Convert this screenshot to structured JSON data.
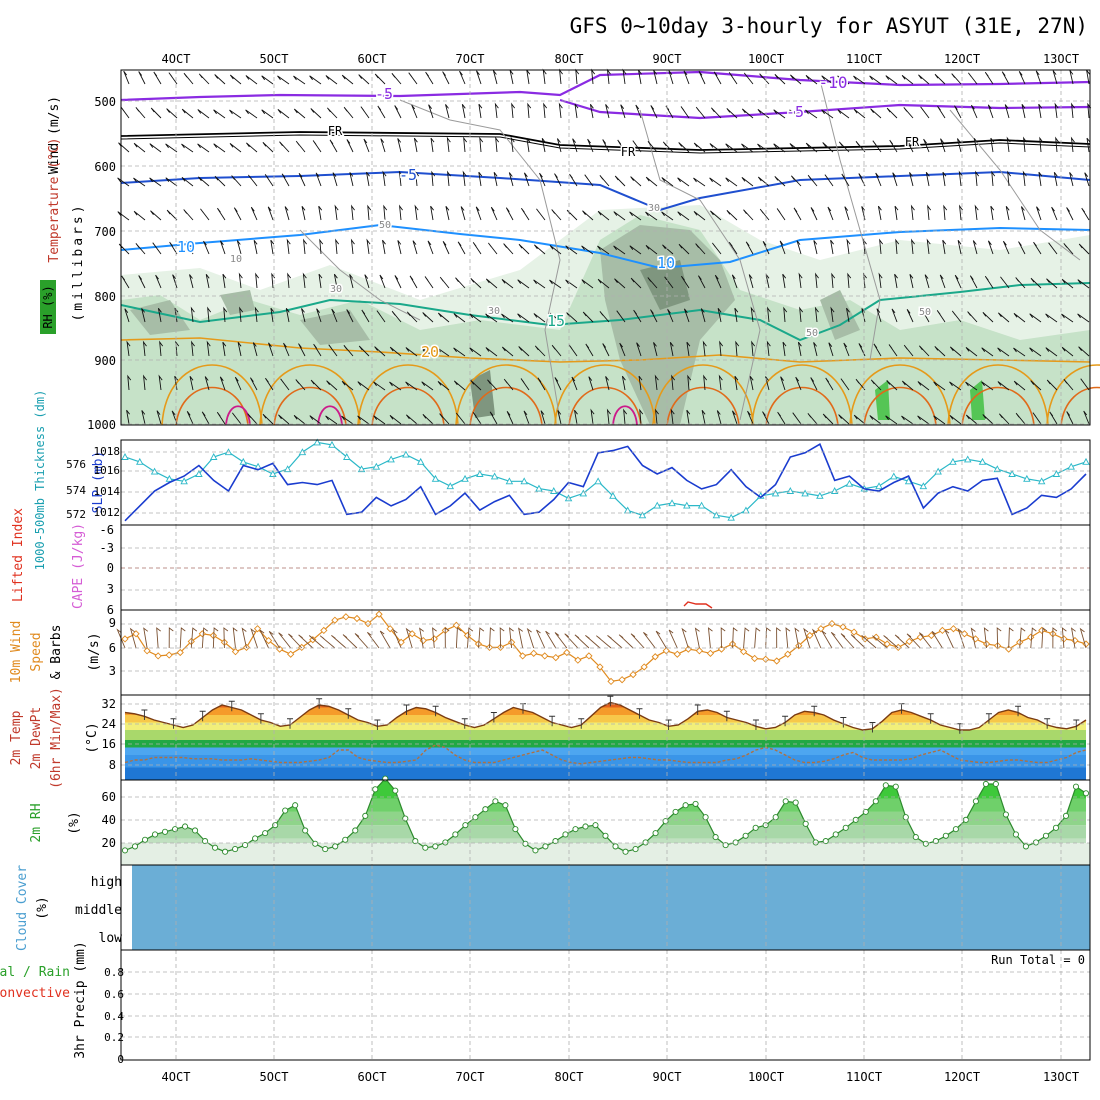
{
  "title": "GFS 0~10day 3-hourly for ASYUT (31E, 27N)",
  "colors": {
    "grid": "#b0b0b0",
    "sounding_rh1": "#e6f2e6",
    "sounding_rh2": "#c6e2c8",
    "sounding_rh3": "#a7bda7",
    "sounding_rh4": "#7f967f",
    "slp": "#1a3ccf",
    "thick": "#2bb8c8",
    "cape": "#d55cd5",
    "li": "#e0301e",
    "wind": "#e08a1e",
    "temp_line": "#7a3b12",
    "dew_line": "#b07040",
    "rh_line": "#2c8a2c",
    "rh_fill": "#5ccf4a",
    "cloud": "#6baed6",
    "purple": "#8a2be2",
    "black": "#000000",
    "blue": "#1f4fcf",
    "lightblue": "#1e90ff",
    "teal": "#1aa88a",
    "orange": "#e59a1a",
    "deeporange": "#e06a1a",
    "magenta": "#cc1a8a"
  },
  "x_ticks": [
    "4OCT",
    "5OCT",
    "6OCT",
    "7OCT",
    "8OCT",
    "9OCT",
    "10OCT",
    "11OCT",
    "12OCT",
    "13OCT"
  ],
  "panels": {
    "sounding": {
      "ylabel_wind": "Wind (m/s)",
      "ylabel_temp": "Temperature (°C)",
      "ylabel_rh": "RH (%)",
      "ylabel_mb": "(millibars)",
      "y_ticks": [
        "500",
        "600",
        "700",
        "800",
        "900",
        "1000"
      ],
      "contour_labels": [
        "-10",
        "-5",
        "-5",
        "FR",
        "FR",
        "FR",
        "-5",
        "10",
        "10",
        "15",
        "20",
        "30",
        "50",
        "30",
        "10",
        "50",
        "30",
        "50"
      ]
    },
    "slp": {
      "ylabel_thick": "1000-500mb Thickness (dm)",
      "ylabel_slp": "SLP (mb)",
      "left_ticks": [
        "576",
        "574",
        "572"
      ],
      "right_ticks": [
        "1018",
        "1016",
        "1014",
        "1012"
      ]
    },
    "cape": {
      "ylabel_li": "Lifted Index",
      "ylabel_cape": "CAPE (J/kg)",
      "ticks": [
        "-6",
        "-3",
        "0",
        "3",
        "6"
      ]
    },
    "wind10": {
      "ylabel_1": "10m Wind",
      "ylabel_2": "Speed",
      "ylabel_3": "(m/s)",
      "ylabel_4": "& Barbs",
      "ticks": [
        "9",
        "6",
        "3"
      ]
    },
    "temp2m": {
      "ylabel_1": "2m Temp",
      "ylabel_2": "2m DewPt",
      "ylabel_3": "(6hr Min/Max)",
      "ylabel_4": "(°C)",
      "ticks": [
        "32",
        "24",
        "16",
        "8"
      ]
    },
    "rh2m": {
      "ylabel_1": "2m RH",
      "ylabel_2": "(%)",
      "ticks": [
        "60",
        "40",
        "20"
      ]
    },
    "cloud": {
      "ylabel_1": "Cloud Cover",
      "ylabel_2": "(%)",
      "levels": [
        "high",
        "middle",
        "low"
      ]
    },
    "precip": {
      "ylabel_total": "Total / Rain",
      "ylabel_conv": "Convective",
      "ylabel_precip": "3hr Precip (mm)",
      "ticks": [
        "0.8",
        "0.6",
        "0.4",
        "0.2",
        "0"
      ],
      "run_total": "Run Total = 0"
    }
  },
  "chart_data": [
    {
      "type": "line",
      "title": "1000-500mb Thickness and SLP",
      "series": [
        {
          "name": "SLP (mb)",
          "axis": "right",
          "values": [
            1011.4,
            1012.8,
            1014.2,
            1015.0,
            1015.6,
            1016.6,
            1015.2,
            1014.2,
            1016.6,
            1016.2,
            1016.8,
            1014.8,
            1015.0,
            1014.8,
            1015.2,
            1012.0,
            1012.2,
            1013.6,
            1012.8,
            1013.4,
            1014.6,
            1012.0,
            1012.8,
            1014.0,
            1012.4,
            1013.2,
            1013.8,
            1012.0,
            1012.2,
            1013.4,
            1015.0,
            1014.6,
            1017.8,
            1018.0,
            1018.4,
            1016.6,
            1015.8,
            1016.4,
            1015.2,
            1014.4,
            1014.8,
            1016.2,
            1014.6,
            1013.6,
            1014.8,
            1017.4,
            1017.8,
            1018.6,
            1015.2,
            1015.6,
            1014.4,
            1014.2,
            1015.0,
            1015.6,
            1012.6,
            1014.0,
            1014.6,
            1014.2,
            1015.2,
            1015.4,
            1012.0,
            1012.6,
            1013.8,
            1013.6,
            1014.4,
            1015.8
          ]
        },
        {
          "name": "1000-500mb Thickness (dm)",
          "axis": "left",
          "values": [
            576.6,
            576.2,
            575.4,
            574.8,
            574.6,
            575.2,
            576.6,
            577.0,
            576.2,
            575.8,
            575.2,
            575.6,
            577.0,
            577.8,
            577.6,
            576.6,
            575.6,
            575.8,
            576.4,
            576.8,
            576.2,
            574.8,
            574.2,
            574.8,
            575.2,
            575.0,
            574.6,
            574.6,
            574.0,
            573.8,
            573.2,
            573.6,
            574.6,
            573.4,
            572.2,
            571.8,
            572.6,
            572.8,
            572.6,
            572.6,
            571.8,
            571.6,
            572.2,
            573.4,
            573.6,
            573.8,
            573.6,
            573.4,
            573.8,
            574.4,
            574.0,
            574.2,
            575.0,
            574.6,
            574.2,
            575.4,
            576.2,
            576.4,
            576.2,
            575.6,
            575.2,
            574.8,
            574.6,
            575.2,
            575.8,
            576.2
          ]
        }
      ],
      "xlabel": "",
      "ylim_slp": [
        1011,
        1019
      ],
      "ylim_thick": [
        571,
        578
      ]
    },
    {
      "type": "line",
      "title": "10m Wind Speed (m/s)",
      "series": [
        {
          "name": "10m Wind Speed",
          "values": [
            6.6,
            7.2,
            5.2,
            4.6,
            4.7,
            5.0,
            6.3,
            7.2,
            7.0,
            6.2,
            5.1,
            5.6,
            7.8,
            6.4,
            5.4,
            4.8,
            5.6,
            6.5,
            7.6,
            8.8,
            9.2,
            9.0,
            8.4,
            9.5,
            7.8,
            6.2,
            7.2,
            6.4,
            6.6,
            7.6,
            8.2,
            7.0,
            6.0,
            5.6,
            5.6,
            6.2,
            4.6,
            4.9,
            4.6,
            4.4,
            5.0,
            4.1,
            4.6,
            3.3,
            1.6,
            1.8,
            2.4,
            3.3,
            4.5,
            5.2,
            4.8,
            5.4,
            5.2,
            4.9,
            5.4,
            6.0,
            5.1,
            4.3,
            4.2,
            4.0,
            4.8,
            5.8,
            7.0,
            7.8,
            8.4,
            8.0,
            7.4,
            6.6,
            6.8,
            6.0,
            5.6,
            6.3,
            6.8,
            7.0,
            7.6,
            7.8,
            7.2,
            6.6,
            6.0,
            5.8,
            5.4,
            6.2,
            6.8,
            7.6,
            7.2,
            6.6,
            6.4,
            6.0
          ]
        }
      ],
      "ylim": [
        0,
        10
      ]
    },
    {
      "type": "area",
      "title": "2m Temp and 2m DewPt (°C)",
      "series": [
        {
          "name": "2m Temp",
          "values": [
            27,
            26.5,
            25.5,
            24,
            23,
            22,
            21,
            22,
            25,
            28,
            30,
            29,
            28,
            26,
            24,
            23,
            21.5,
            22,
            25,
            28,
            30,
            29.5,
            28,
            26,
            24,
            23,
            21.5,
            22,
            25,
            27.5,
            29,
            28.5,
            27,
            25,
            23.5,
            22,
            21,
            22,
            24.5,
            27,
            29,
            28,
            27,
            25,
            23,
            22,
            21,
            22,
            25.5,
            29,
            31,
            30,
            28,
            26,
            24,
            23,
            21.5,
            22,
            24.5,
            27.5,
            28,
            27,
            25,
            24,
            23,
            21.5,
            20.5,
            21,
            23,
            26,
            27.5,
            27,
            26,
            24,
            22.5,
            21,
            20,
            20.5,
            23.5,
            27,
            28,
            27,
            25.5,
            24,
            22,
            21,
            20,
            20,
            21,
            24,
            27,
            28,
            27,
            25,
            24,
            22,
            21,
            20.5,
            21.5,
            24
          ]
        },
        {
          "name": "2m DewPt",
          "values": [
            7,
            8,
            8,
            9,
            9,
            9,
            9,
            8.5,
            8.5,
            8.5,
            8,
            8,
            8,
            8.5,
            8,
            7.5,
            7,
            7,
            7,
            7.5,
            8,
            9,
            12,
            12,
            9,
            8,
            7.5,
            7,
            7,
            7.5,
            8,
            12,
            14,
            13,
            10,
            8,
            7,
            7,
            7,
            8,
            9,
            10,
            11,
            12,
            10,
            8,
            7,
            6.5,
            7,
            7.5,
            8,
            8.5,
            9,
            9,
            8.5,
            8,
            8,
            7.5,
            7,
            7,
            7,
            7,
            8,
            8.5,
            10,
            12,
            13,
            12,
            10,
            8,
            7,
            7,
            7.5,
            8.5,
            10,
            11,
            9,
            8,
            8,
            8,
            8,
            8.5,
            10,
            11,
            12,
            10,
            8,
            7.5,
            7,
            7,
            7.5,
            8,
            8,
            7.5,
            7,
            7,
            8,
            9,
            11,
            12
          ]
        }
      ],
      "ylim": [
        0,
        34
      ]
    },
    {
      "type": "area",
      "title": "2m RH (%)",
      "series": [
        {
          "name": "2m RH",
          "values": [
            21,
            24,
            29,
            33,
            35,
            37,
            39,
            36,
            28,
            23,
            20,
            22,
            25,
            30,
            34,
            40,
            51,
            55,
            36,
            26,
            22,
            24,
            29,
            36,
            47,
            67,
            75,
            66,
            45,
            28,
            23,
            24,
            27,
            33,
            40,
            46,
            52,
            58,
            55,
            37,
            26,
            21,
            24,
            28,
            33,
            37,
            39,
            40,
            32,
            24,
            20,
            22,
            27,
            34,
            43,
            50,
            55,
            56,
            46,
            31,
            25,
            27,
            32,
            38,
            40,
            46,
            58,
            57,
            41,
            27,
            28,
            33,
            38,
            44,
            50,
            58,
            70,
            69,
            46,
            31,
            26,
            28,
            32,
            37,
            44,
            58,
            71,
            71,
            48,
            33,
            24,
            27,
            32,
            38,
            47,
            69,
            64
          ]
        }
      ],
      "ylim": [
        10,
        74
      ]
    },
    {
      "type": "bar",
      "title": "3hr Precip (mm)",
      "values": [],
      "ylim": [
        0,
        1.0
      ]
    }
  ]
}
